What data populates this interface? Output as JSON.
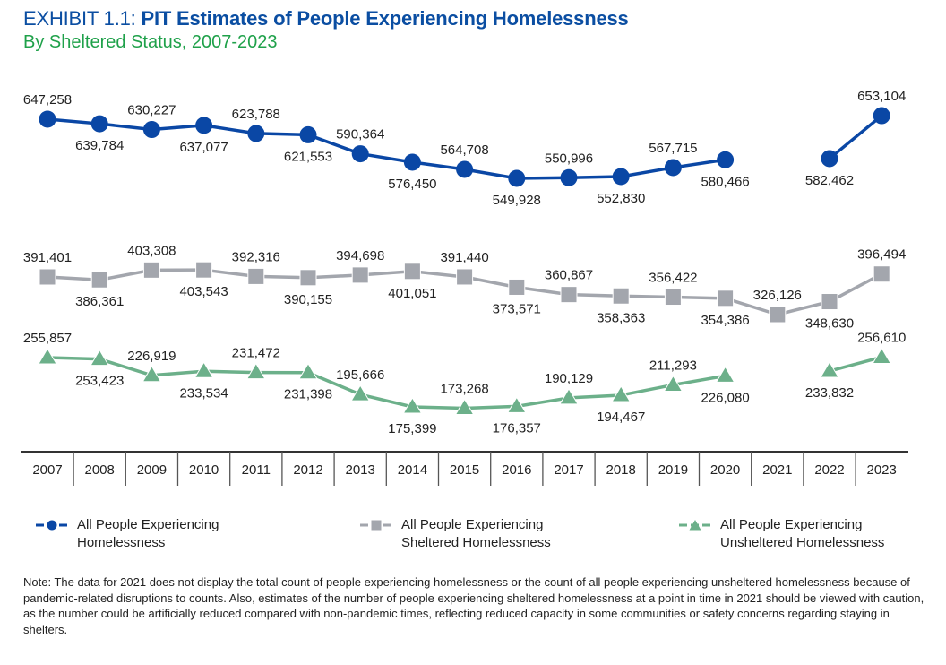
{
  "header": {
    "exhibit_label": "EXHIBIT 1.1: ",
    "title": "PIT Estimates of People Experiencing Homelessness",
    "subtitle": "By Sheltered Status, 2007-2023"
  },
  "colors": {
    "title": "#0b4ea2",
    "subtitle": "#1fa14a",
    "all": "#0a47a5",
    "sheltered": "#a3a6ad",
    "unsheltered": "#6cb08a",
    "axis": "#333333",
    "text": "#222222"
  },
  "chart_data": {
    "type": "line",
    "title": "PIT Estimates of People Experiencing Homelessness",
    "subtitle": "By Sheltered Status, 2007-2023",
    "xlabel": "",
    "ylabel": "",
    "grid": false,
    "legend_position": "bottom",
    "x": [
      "2007",
      "2008",
      "2009",
      "2010",
      "2011",
      "2012",
      "2013",
      "2014",
      "2015",
      "2016",
      "2017",
      "2018",
      "2019",
      "2020",
      "2021",
      "2022",
      "2023"
    ],
    "series": [
      {
        "name": "All People Experiencing Homelessness",
        "key": "all",
        "marker": "circle",
        "values": [
          647258,
          639784,
          630227,
          637077,
          623788,
          621553,
          590364,
          576450,
          564708,
          549928,
          550996,
          552830,
          567715,
          580466,
          null,
          582462,
          653104
        ],
        "labels": [
          "647,258",
          "639,784",
          "630,227",
          "637,077",
          "623,788",
          "621,553",
          "590,364",
          "576,450",
          "564,708",
          "549,928",
          "550,996",
          "552,830",
          "567,715",
          "580,466",
          "",
          "582,462",
          "653,104"
        ],
        "label_side": [
          "above",
          "below",
          "above",
          "below",
          "above",
          "below",
          "above",
          "below",
          "above",
          "below",
          "above",
          "below",
          "above",
          "below",
          "",
          "below",
          "above"
        ]
      },
      {
        "name": "All People Experiencing Sheltered Homelessness",
        "key": "sheltered",
        "marker": "square",
        "values": [
          391401,
          386361,
          403308,
          403543,
          392316,
          390155,
          394698,
          401051,
          391440,
          373571,
          360867,
          358363,
          356422,
          354386,
          326126,
          348630,
          396494
        ],
        "labels": [
          "391,401",
          "386,361",
          "403,308",
          "403,543",
          "392,316",
          "390,155",
          "394,698",
          "401,051",
          "391,440",
          "373,571",
          "360,867",
          "358,363",
          "356,422",
          "354,386",
          "326,126",
          "348,630",
          "396,494"
        ],
        "label_side": [
          "above",
          "below",
          "above",
          "below",
          "above",
          "below",
          "above",
          "below",
          "above",
          "below",
          "above",
          "below",
          "above",
          "below",
          "above",
          "below",
          "above"
        ]
      },
      {
        "name": "All People Experiencing Unsheltered Homelessness",
        "key": "unsheltered",
        "marker": "triangle",
        "values": [
          255857,
          253423,
          226919,
          233534,
          231472,
          231398,
          195666,
          175399,
          173268,
          176357,
          190129,
          194467,
          211293,
          226080,
          null,
          233832,
          256610
        ],
        "labels": [
          "255,857",
          "253,423",
          "226,919",
          "233,534",
          "231,472",
          "231,398",
          "195,666",
          "175,399",
          "173,268",
          "176,357",
          "190,129",
          "194,467",
          "211,293",
          "226,080",
          "",
          "233,832",
          "256,610"
        ],
        "label_side": [
          "above",
          "below",
          "above",
          "below",
          "above",
          "below",
          "above",
          "below",
          "above",
          "below",
          "above",
          "below",
          "above",
          "below",
          "",
          "below",
          "above"
        ]
      }
    ]
  },
  "legend": [
    {
      "line1": "All People Experiencing",
      "line2": "Homelessness"
    },
    {
      "line1": "All People Experiencing",
      "line2": "Sheltered Homelessness"
    },
    {
      "line1": "All People Experiencing",
      "line2": "Unsheltered Homelessness"
    }
  ],
  "note": "Note: The data for 2021 does not display the total count of people experiencing homelessness or the count of all people experiencing unsheltered homelessness because of pandemic-related disruptions to counts. Also, estimates of the number of people experiencing sheltered homelessness at a point in time in 2021 should be viewed with caution, as the number could be artificially reduced compared with non-pandemic times, reflecting reduced capacity in some communities or safety concerns regarding staying in shelters."
}
